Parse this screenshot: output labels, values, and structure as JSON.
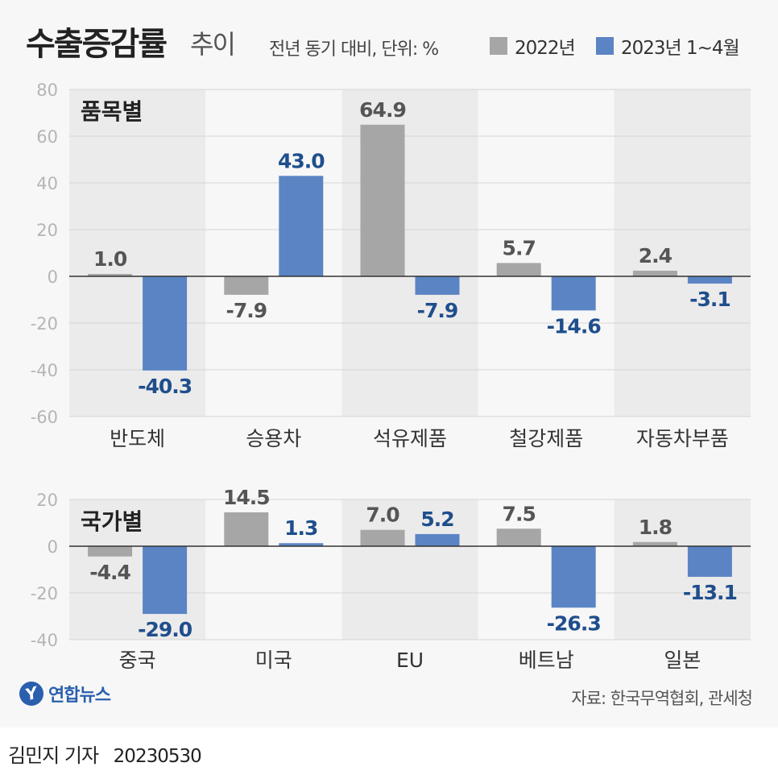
{
  "header": {
    "title": "수출증감률",
    "subtitle": "추이",
    "unit_note": "전년 동기 대비, 단위: %"
  },
  "legend": [
    {
      "label": "2022년",
      "color": "#a6a6a6"
    },
    {
      "label": "2023년 1~4월",
      "color": "#5b84c4"
    }
  ],
  "colors": {
    "s2022": "#a6a6a6",
    "s2023": "#5b84c4",
    "label2023": "#1f4e8c",
    "label2022": "#555555",
    "band": "#ebebeb"
  },
  "chart_data": [
    {
      "type": "bar",
      "title": "품목별",
      "categories": [
        "반도체",
        "승용차",
        "석유제품",
        "철강제품",
        "자동차부품"
      ],
      "series": [
        {
          "name": "2022년",
          "values": [
            1.0,
            -7.9,
            64.9,
            5.7,
            2.4
          ]
        },
        {
          "name": "2023년 1~4월",
          "values": [
            -40.3,
            43.0,
            -7.9,
            -14.6,
            -3.1
          ]
        }
      ],
      "value_labels": [
        [
          "1.0",
          "-7.9",
          "64.9",
          "5.7",
          "2.4"
        ],
        [
          "-40.3",
          "43.0",
          "-7.9",
          "-14.6",
          "-3.1"
        ]
      ],
      "yticks": [
        "80",
        "60",
        "40",
        "20",
        "0",
        "-20",
        "-40",
        "-60"
      ],
      "ylim": [
        -60,
        80
      ]
    },
    {
      "type": "bar",
      "title": "국가별",
      "categories": [
        "중국",
        "미국",
        "EU",
        "베트남",
        "일본"
      ],
      "series": [
        {
          "name": "2022년",
          "values": [
            -4.4,
            14.5,
            7.0,
            7.5,
            1.8
          ]
        },
        {
          "name": "2023년 1~4월",
          "values": [
            -29.0,
            1.3,
            5.2,
            -26.3,
            -13.1
          ]
        }
      ],
      "value_labels": [
        [
          "-4.4",
          "14.5",
          "7.0",
          "7.5",
          "1.8"
        ],
        [
          "-29.0",
          "1.3",
          "5.2",
          "-26.3",
          "-13.1"
        ]
      ],
      "yticks": [
        "20",
        "0",
        "-20",
        "-40"
      ],
      "ylim": [
        -40,
        20
      ]
    }
  ],
  "footer": {
    "logo_text": "연합뉴스",
    "source": "자료: 한국무역협회, 관세청",
    "reporter": "김민지 기자",
    "date": "20230530"
  }
}
